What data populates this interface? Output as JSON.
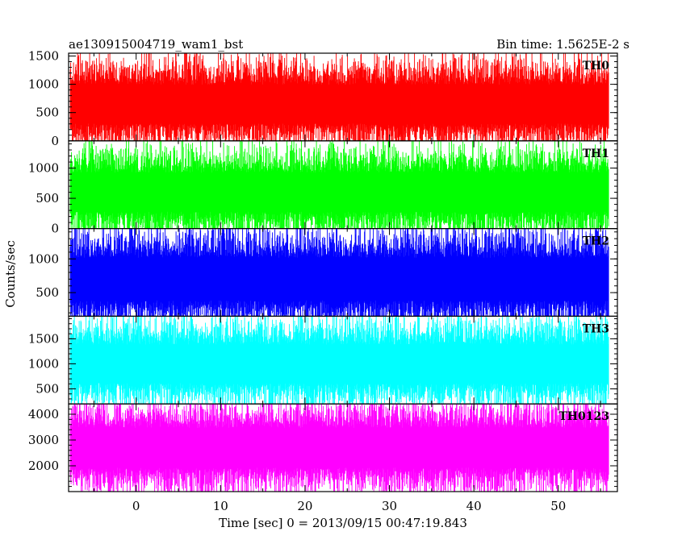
{
  "header": {
    "title": "ae130915004719_wam1_bst",
    "bin_time": "Bin time: 1.5625E-2 s"
  },
  "chart_data": {
    "type": "line",
    "title": "ae130915004719_wam1_bst",
    "xlabel": "Time [sec] 0 = 2013/09/15 00:47:19.843",
    "ylabel": "Counts/sec",
    "xlim": [
      -8,
      57
    ],
    "x_ticks": [
      0,
      10,
      20,
      30,
      40,
      50
    ],
    "x_tick_labels": [
      "0",
      "10",
      "20",
      "30",
      "40",
      "50"
    ],
    "bin_time_s": 0.015625,
    "data_x_range": [
      -7.8,
      56.0
    ],
    "grid": false,
    "legend": "none",
    "panels": [
      {
        "name": "TH0",
        "color": "#ff0000",
        "ylim": [
          0,
          1550
        ],
        "y_ticks": [
          0,
          500,
          1000,
          1500
        ],
        "y_tick_labels": [
          "0",
          "500",
          "1000",
          "1500"
        ],
        "mean": 650,
        "typical_min": 100,
        "typical_max": 1350
      },
      {
        "name": "TH1",
        "color": "#00ff00",
        "ylim": [
          0,
          1450
        ],
        "y_ticks": [
          0,
          500,
          1000
        ],
        "y_tick_labels": [
          "0",
          "500",
          "1000"
        ],
        "mean": 600,
        "typical_min": 80,
        "typical_max": 1250
      },
      {
        "name": "TH2",
        "color": "#0000ff",
        "ylim": [
          150,
          1450
        ],
        "y_ticks": [
          500,
          1000
        ],
        "y_tick_labels": [
          "500",
          "1000"
        ],
        "mean": 700,
        "typical_min": 200,
        "typical_max": 1350
      },
      {
        "name": "TH3",
        "color": "#00ffff",
        "ylim": [
          200,
          1950
        ],
        "y_ticks": [
          500,
          1000,
          1500
        ],
        "y_tick_labels": [
          "500",
          "1000",
          "1500"
        ],
        "mean": 1000,
        "typical_min": 350,
        "typical_max": 1750
      },
      {
        "name": "TH0123",
        "color": "#ff00ff",
        "ylim": [
          1000,
          4400
        ],
        "y_ticks": [
          2000,
          3000,
          4000
        ],
        "y_tick_labels": [
          "2000",
          "3000",
          "4000"
        ],
        "mean": 2700,
        "typical_min": 1300,
        "typical_max": 4100
      }
    ]
  }
}
